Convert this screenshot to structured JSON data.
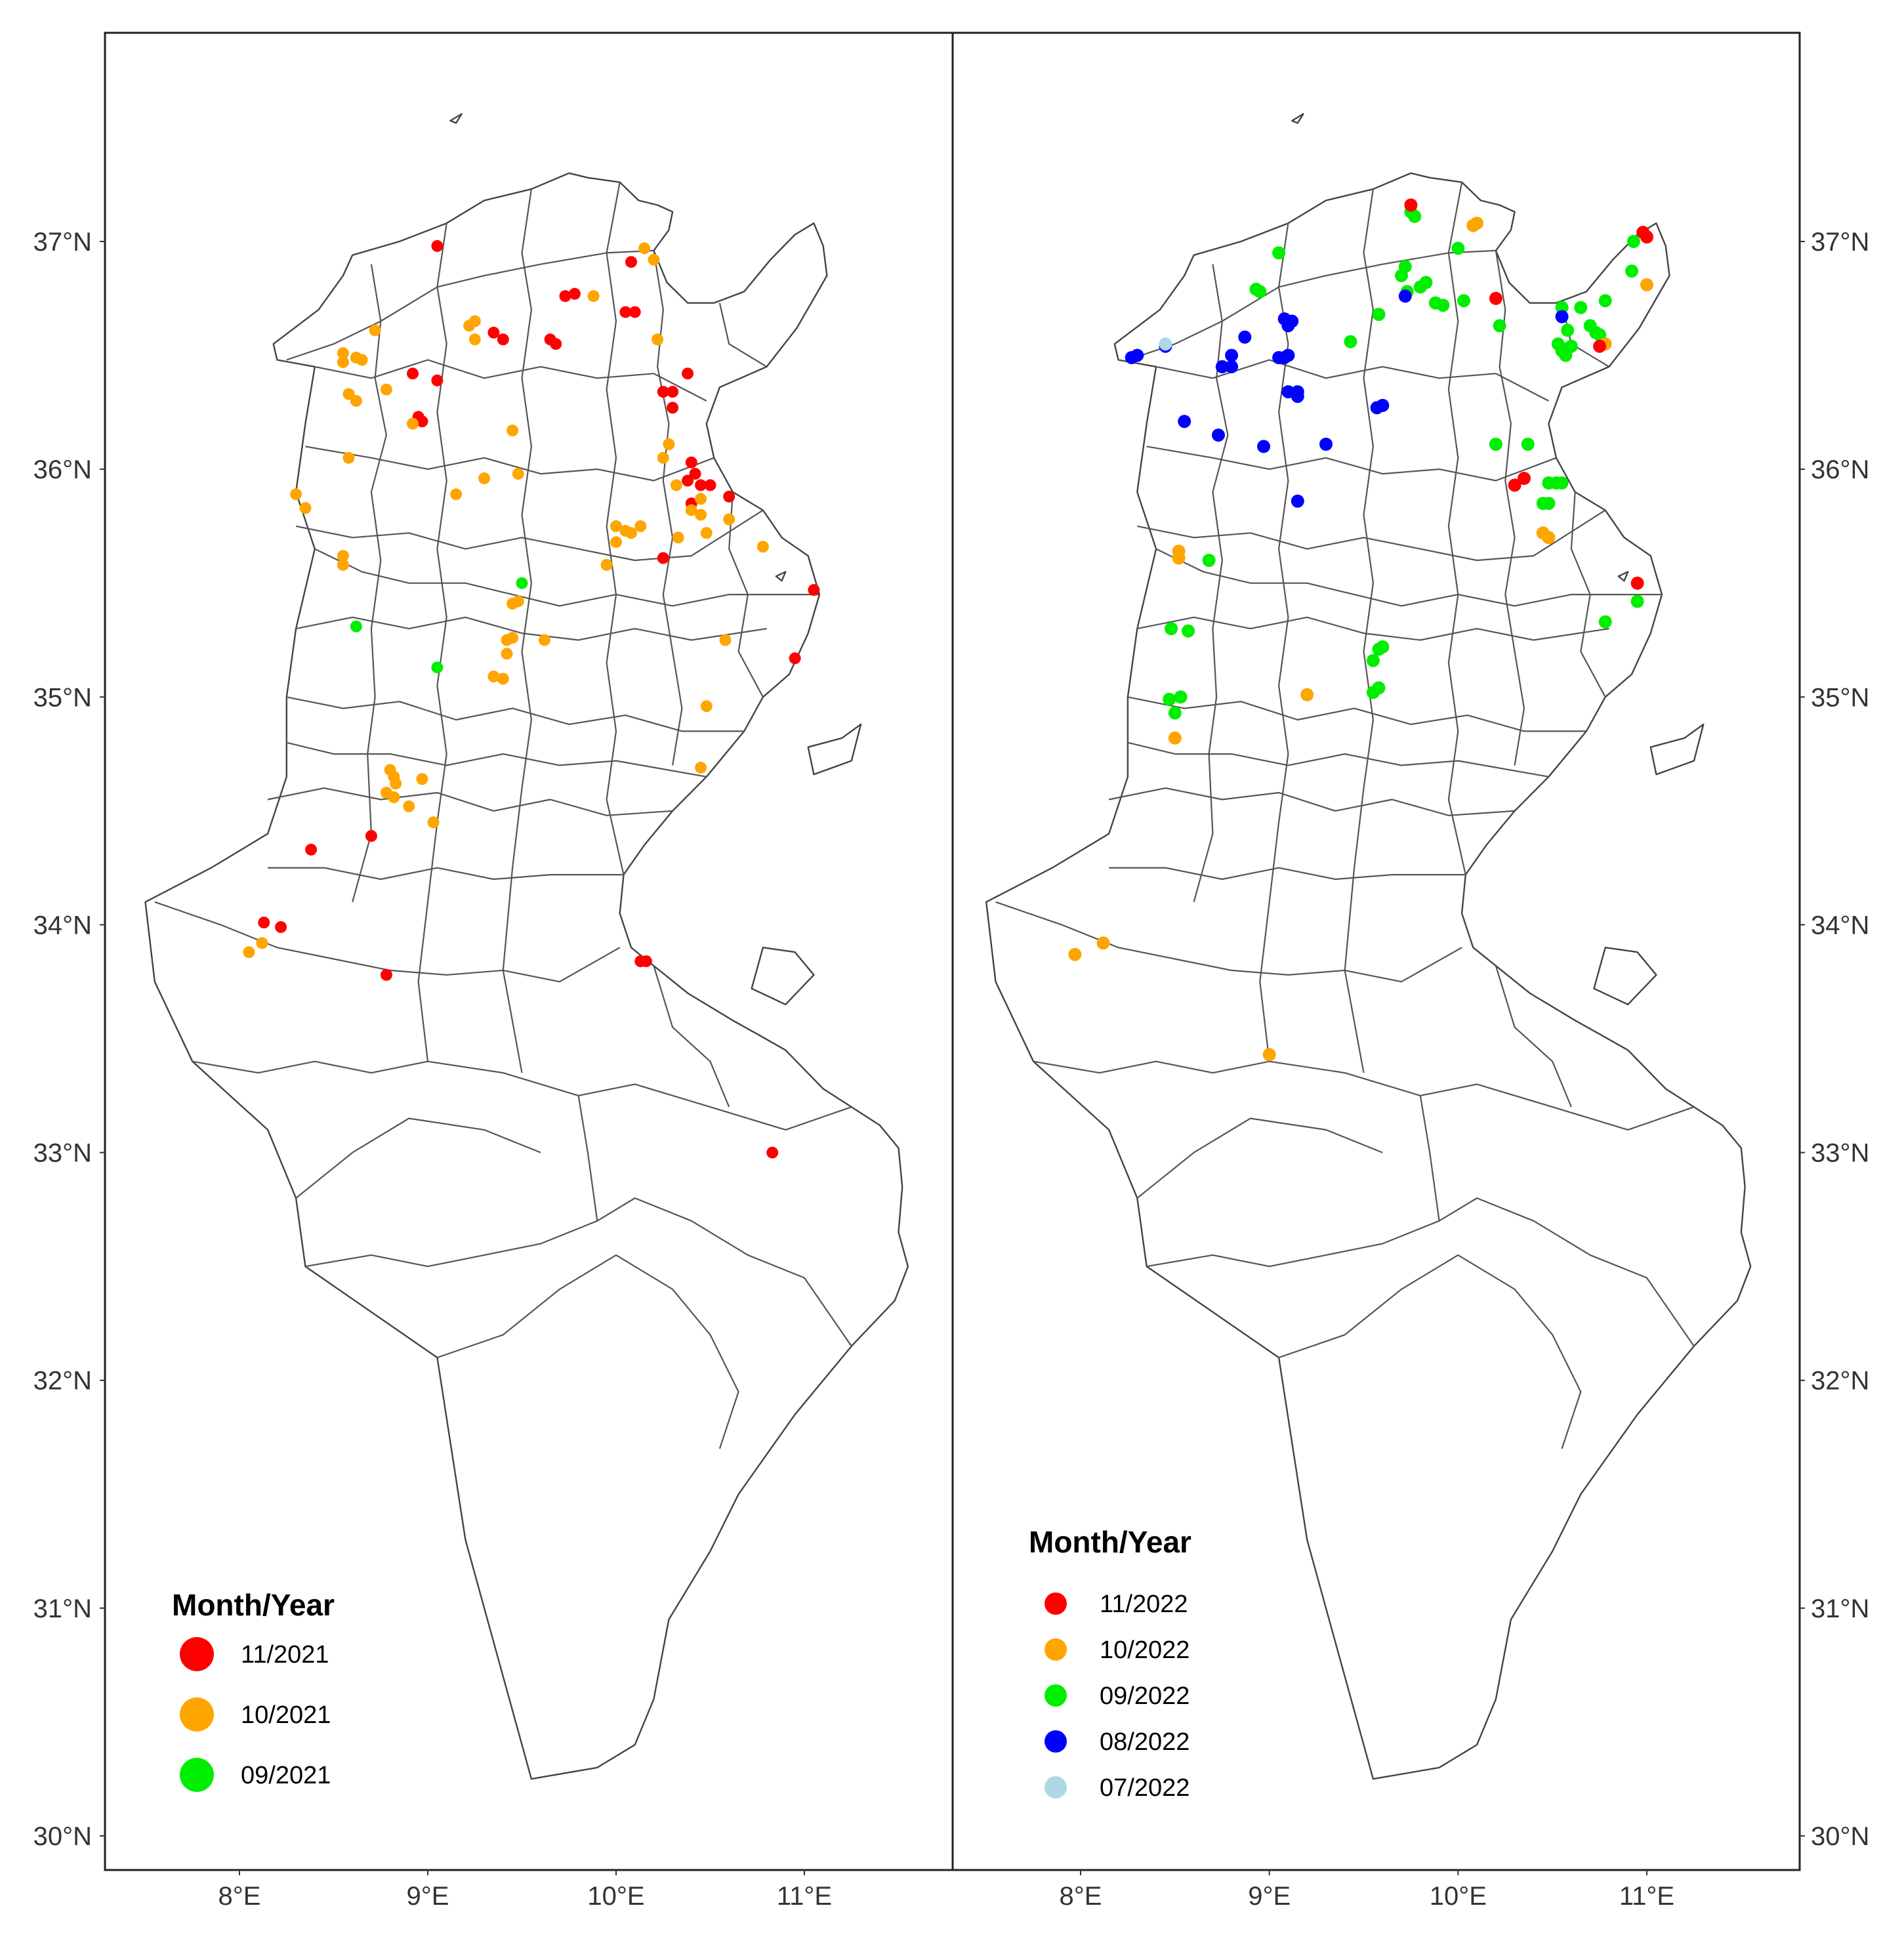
{
  "colors": {
    "11": "#ff0000",
    "10": "#ffa500",
    "09": "#00ee00",
    "08": "#0000ff",
    "07": "#add8e6"
  },
  "x_ticks": [
    "8°E",
    "9°E",
    "10°E",
    "11°E"
  ],
  "y_ticks": [
    "30°N",
    "31°N",
    "32°N",
    "33°N",
    "34°N",
    "35°N",
    "36°N",
    "37°N"
  ],
  "panels": [
    {
      "id": "2021",
      "legend": {
        "title": "Month/Year",
        "items": [
          {
            "label": "11/2021",
            "color_key": "11"
          },
          {
            "label": "10/2021",
            "color_key": "10"
          },
          {
            "label": "09/2021",
            "color_key": "09"
          }
        ]
      },
      "points": [
        {
          "lon": 9.05,
          "lat": 36.98,
          "m": "11"
        },
        {
          "lon": 10.08,
          "lat": 36.91,
          "m": "11"
        },
        {
          "lon": 9.73,
          "lat": 36.76,
          "m": "11"
        },
        {
          "lon": 9.78,
          "lat": 36.77,
          "m": "11"
        },
        {
          "lon": 10.05,
          "lat": 36.69,
          "m": "11"
        },
        {
          "lon": 10.1,
          "lat": 36.69,
          "m": "11"
        },
        {
          "lon": 9.35,
          "lat": 36.6,
          "m": "11"
        },
        {
          "lon": 9.4,
          "lat": 36.57,
          "m": "11"
        },
        {
          "lon": 9.65,
          "lat": 36.57,
          "m": "11"
        },
        {
          "lon": 9.68,
          "lat": 36.55,
          "m": "11"
        },
        {
          "lon": 8.92,
          "lat": 36.42,
          "m": "11"
        },
        {
          "lon": 9.05,
          "lat": 36.39,
          "m": "11"
        },
        {
          "lon": 10.38,
          "lat": 36.42,
          "m": "11"
        },
        {
          "lon": 10.25,
          "lat": 36.34,
          "m": "11"
        },
        {
          "lon": 10.3,
          "lat": 36.34,
          "m": "11"
        },
        {
          "lon": 10.3,
          "lat": 36.27,
          "m": "11"
        },
        {
          "lon": 8.95,
          "lat": 36.23,
          "m": "11"
        },
        {
          "lon": 8.97,
          "lat": 36.21,
          "m": "11"
        },
        {
          "lon": 10.4,
          "lat": 36.03,
          "m": "11"
        },
        {
          "lon": 10.42,
          "lat": 35.98,
          "m": "11"
        },
        {
          "lon": 10.38,
          "lat": 35.95,
          "m": "11"
        },
        {
          "lon": 10.45,
          "lat": 35.93,
          "m": "11"
        },
        {
          "lon": 10.5,
          "lat": 35.93,
          "m": "11"
        },
        {
          "lon": 10.6,
          "lat": 35.88,
          "m": "11"
        },
        {
          "lon": 10.4,
          "lat": 35.85,
          "m": "11"
        },
        {
          "lon": 10.25,
          "lat": 35.61,
          "m": "11"
        },
        {
          "lon": 11.05,
          "lat": 35.47,
          "m": "11"
        },
        {
          "lon": 10.95,
          "lat": 35.17,
          "m": "11"
        },
        {
          "lon": 8.38,
          "lat": 34.33,
          "m": "11"
        },
        {
          "lon": 8.7,
          "lat": 34.39,
          "m": "11"
        },
        {
          "lon": 8.13,
          "lat": 34.01,
          "m": "11"
        },
        {
          "lon": 8.22,
          "lat": 33.99,
          "m": "11"
        },
        {
          "lon": 8.78,
          "lat": 33.78,
          "m": "11"
        },
        {
          "lon": 10.13,
          "lat": 33.84,
          "m": "11"
        },
        {
          "lon": 10.16,
          "lat": 33.84,
          "m": "11"
        },
        {
          "lon": 10.83,
          "lat": 33.0,
          "m": "11"
        },
        {
          "lon": 10.15,
          "lat": 36.97,
          "m": "10"
        },
        {
          "lon": 10.2,
          "lat": 36.92,
          "m": "10"
        },
        {
          "lon": 9.88,
          "lat": 36.76,
          "m": "10"
        },
        {
          "lon": 8.72,
          "lat": 36.61,
          "m": "10"
        },
        {
          "lon": 9.22,
          "lat": 36.63,
          "m": "10"
        },
        {
          "lon": 9.25,
          "lat": 36.65,
          "m": "10"
        },
        {
          "lon": 10.22,
          "lat": 36.57,
          "m": "10"
        },
        {
          "lon": 9.25,
          "lat": 36.57,
          "m": "10"
        },
        {
          "lon": 8.55,
          "lat": 36.51,
          "m": "10"
        },
        {
          "lon": 8.55,
          "lat": 36.47,
          "m": "10"
        },
        {
          "lon": 8.62,
          "lat": 36.49,
          "m": "10"
        },
        {
          "lon": 8.65,
          "lat": 36.48,
          "m": "10"
        },
        {
          "lon": 8.58,
          "lat": 36.33,
          "m": "10"
        },
        {
          "lon": 8.62,
          "lat": 36.3,
          "m": "10"
        },
        {
          "lon": 8.78,
          "lat": 36.35,
          "m": "10"
        },
        {
          "lon": 8.92,
          "lat": 36.2,
          "m": "10"
        },
        {
          "lon": 9.45,
          "lat": 36.17,
          "m": "10"
        },
        {
          "lon": 10.28,
          "lat": 36.11,
          "m": "10"
        },
        {
          "lon": 10.25,
          "lat": 36.05,
          "m": "10"
        },
        {
          "lon": 8.58,
          "lat": 36.05,
          "m": "10"
        },
        {
          "lon": 9.3,
          "lat": 35.96,
          "m": "10"
        },
        {
          "lon": 9.48,
          "lat": 35.98,
          "m": "10"
        },
        {
          "lon": 8.3,
          "lat": 35.89,
          "m": "10"
        },
        {
          "lon": 8.35,
          "lat": 35.83,
          "m": "10"
        },
        {
          "lon": 9.15,
          "lat": 35.89,
          "m": "10"
        },
        {
          "lon": 10.32,
          "lat": 35.93,
          "m": "10"
        },
        {
          "lon": 10.45,
          "lat": 35.87,
          "m": "10"
        },
        {
          "lon": 10.4,
          "lat": 35.82,
          "m": "10"
        },
        {
          "lon": 10.45,
          "lat": 35.8,
          "m": "10"
        },
        {
          "lon": 10.6,
          "lat": 35.78,
          "m": "10"
        },
        {
          "lon": 10.0,
          "lat": 35.75,
          "m": "10"
        },
        {
          "lon": 10.05,
          "lat": 35.73,
          "m": "10"
        },
        {
          "lon": 10.08,
          "lat": 35.72,
          "m": "10"
        },
        {
          "lon": 10.13,
          "lat": 35.75,
          "m": "10"
        },
        {
          "lon": 10.0,
          "lat": 35.68,
          "m": "10"
        },
        {
          "lon": 10.33,
          "lat": 35.7,
          "m": "10"
        },
        {
          "lon": 10.48,
          "lat": 35.72,
          "m": "10"
        },
        {
          "lon": 10.78,
          "lat": 35.66,
          "m": "10"
        },
        {
          "lon": 8.55,
          "lat": 35.62,
          "m": "10"
        },
        {
          "lon": 8.55,
          "lat": 35.58,
          "m": "10"
        },
        {
          "lon": 9.95,
          "lat": 35.58,
          "m": "10"
        },
        {
          "lon": 9.45,
          "lat": 35.41,
          "m": "10"
        },
        {
          "lon": 9.48,
          "lat": 35.42,
          "m": "10"
        },
        {
          "lon": 9.42,
          "lat": 35.25,
          "m": "10"
        },
        {
          "lon": 9.45,
          "lat": 35.26,
          "m": "10"
        },
        {
          "lon": 9.62,
          "lat": 35.25,
          "m": "10"
        },
        {
          "lon": 10.58,
          "lat": 35.25,
          "m": "10"
        },
        {
          "lon": 9.42,
          "lat": 35.19,
          "m": "10"
        },
        {
          "lon": 9.35,
          "lat": 35.09,
          "m": "10"
        },
        {
          "lon": 9.4,
          "lat": 35.08,
          "m": "10"
        },
        {
          "lon": 10.48,
          "lat": 34.96,
          "m": "10"
        },
        {
          "lon": 10.45,
          "lat": 34.69,
          "m": "10"
        },
        {
          "lon": 8.8,
          "lat": 34.68,
          "m": "10"
        },
        {
          "lon": 8.82,
          "lat": 34.65,
          "m": "10"
        },
        {
          "lon": 8.83,
          "lat": 34.62,
          "m": "10"
        },
        {
          "lon": 8.97,
          "lat": 34.64,
          "m": "10"
        },
        {
          "lon": 8.78,
          "lat": 34.58,
          "m": "10"
        },
        {
          "lon": 8.82,
          "lat": 34.56,
          "m": "10"
        },
        {
          "lon": 8.9,
          "lat": 34.52,
          "m": "10"
        },
        {
          "lon": 9.03,
          "lat": 34.45,
          "m": "10"
        },
        {
          "lon": 8.12,
          "lat": 33.92,
          "m": "10"
        },
        {
          "lon": 8.05,
          "lat": 33.88,
          "m": "10"
        },
        {
          "lon": 9.5,
          "lat": 35.5,
          "m": "09"
        },
        {
          "lon": 8.62,
          "lat": 35.31,
          "m": "09"
        },
        {
          "lon": 9.05,
          "lat": 35.13,
          "m": "09"
        }
      ]
    },
    {
      "id": "2022",
      "legend": {
        "title": "Month/Year",
        "items": [
          {
            "label": "11/2022",
            "color_key": "11"
          },
          {
            "label": "10/2022",
            "color_key": "10"
          },
          {
            "label": "09/2022",
            "color_key": "09"
          },
          {
            "label": "08/2022",
            "color_key": "08"
          },
          {
            "label": "07/2022",
            "color_key": "07"
          }
        ]
      },
      "points": [
        {
          "lon": 9.75,
          "lat": 37.13,
          "m": "09"
        },
        {
          "lon": 9.77,
          "lat": 37.11,
          "m": "09"
        },
        {
          "lon": 9.05,
          "lat": 36.95,
          "m": "09"
        },
        {
          "lon": 10.0,
          "lat": 36.97,
          "m": "09"
        },
        {
          "lon": 10.93,
          "lat": 37.0,
          "m": "09"
        },
        {
          "lon": 9.72,
          "lat": 36.89,
          "m": "09"
        },
        {
          "lon": 9.7,
          "lat": 36.85,
          "m": "09"
        },
        {
          "lon": 10.92,
          "lat": 36.87,
          "m": "09"
        },
        {
          "lon": 8.93,
          "lat": 36.79,
          "m": "09"
        },
        {
          "lon": 8.95,
          "lat": 36.78,
          "m": "09"
        },
        {
          "lon": 9.73,
          "lat": 36.78,
          "m": "09"
        },
        {
          "lon": 9.8,
          "lat": 36.8,
          "m": "09"
        },
        {
          "lon": 9.83,
          "lat": 36.82,
          "m": "09"
        },
        {
          "lon": 10.03,
          "lat": 36.74,
          "m": "09"
        },
        {
          "lon": 9.88,
          "lat": 36.73,
          "m": "09"
        },
        {
          "lon": 9.92,
          "lat": 36.72,
          "m": "09"
        },
        {
          "lon": 10.55,
          "lat": 36.71,
          "m": "09"
        },
        {
          "lon": 10.65,
          "lat": 36.71,
          "m": "09"
        },
        {
          "lon": 10.78,
          "lat": 36.74,
          "m": "09"
        },
        {
          "lon": 9.58,
          "lat": 36.68,
          "m": "09"
        },
        {
          "lon": 10.22,
          "lat": 36.63,
          "m": "09"
        },
        {
          "lon": 10.58,
          "lat": 36.61,
          "m": "09"
        },
        {
          "lon": 10.7,
          "lat": 36.63,
          "m": "09"
        },
        {
          "lon": 10.73,
          "lat": 36.6,
          "m": "09"
        },
        {
          "lon": 10.75,
          "lat": 36.59,
          "m": "09"
        },
        {
          "lon": 9.43,
          "lat": 36.56,
          "m": "09"
        },
        {
          "lon": 10.53,
          "lat": 36.55,
          "m": "09"
        },
        {
          "lon": 10.55,
          "lat": 36.52,
          "m": "09"
        },
        {
          "lon": 10.58,
          "lat": 36.53,
          "m": "09"
        },
        {
          "lon": 10.6,
          "lat": 36.54,
          "m": "09"
        },
        {
          "lon": 10.57,
          "lat": 36.5,
          "m": "09"
        },
        {
          "lon": 10.2,
          "lat": 36.11,
          "m": "09"
        },
        {
          "lon": 10.37,
          "lat": 36.11,
          "m": "09"
        },
        {
          "lon": 10.48,
          "lat": 35.94,
          "m": "09"
        },
        {
          "lon": 10.52,
          "lat": 35.94,
          "m": "09"
        },
        {
          "lon": 10.55,
          "lat": 35.94,
          "m": "09"
        },
        {
          "lon": 10.45,
          "lat": 35.85,
          "m": "09"
        },
        {
          "lon": 10.48,
          "lat": 35.85,
          "m": "09"
        },
        {
          "lon": 8.68,
          "lat": 35.6,
          "m": "09"
        },
        {
          "lon": 10.95,
          "lat": 35.42,
          "m": "09"
        },
        {
          "lon": 10.78,
          "lat": 35.33,
          "m": "09"
        },
        {
          "lon": 8.48,
          "lat": 35.3,
          "m": "09"
        },
        {
          "lon": 8.57,
          "lat": 35.29,
          "m": "09"
        },
        {
          "lon": 9.58,
          "lat": 35.21,
          "m": "09"
        },
        {
          "lon": 9.6,
          "lat": 35.22,
          "m": "09"
        },
        {
          "lon": 9.55,
          "lat": 35.16,
          "m": "09"
        },
        {
          "lon": 9.58,
          "lat": 35.04,
          "m": "09"
        },
        {
          "lon": 9.55,
          "lat": 35.02,
          "m": "09"
        },
        {
          "lon": 8.53,
          "lat": 35.0,
          "m": "09"
        },
        {
          "lon": 8.47,
          "lat": 34.99,
          "m": "09"
        },
        {
          "lon": 8.5,
          "lat": 34.93,
          "m": "09"
        },
        {
          "lon": 9.72,
          "lat": 36.76,
          "m": "08"
        },
        {
          "lon": 9.08,
          "lat": 36.66,
          "m": "08"
        },
        {
          "lon": 9.12,
          "lat": 36.65,
          "m": "08"
        },
        {
          "lon": 9.1,
          "lat": 36.63,
          "m": "08"
        },
        {
          "lon": 10.55,
          "lat": 36.67,
          "m": "08"
        },
        {
          "lon": 8.87,
          "lat": 36.58,
          "m": "08"
        },
        {
          "lon": 8.45,
          "lat": 36.54,
          "m": "08"
        },
        {
          "lon": 8.3,
          "lat": 36.5,
          "m": "08"
        },
        {
          "lon": 8.27,
          "lat": 36.49,
          "m": "08"
        },
        {
          "lon": 8.8,
          "lat": 36.5,
          "m": "08"
        },
        {
          "lon": 9.05,
          "lat": 36.49,
          "m": "08"
        },
        {
          "lon": 9.08,
          "lat": 36.49,
          "m": "08"
        },
        {
          "lon": 9.1,
          "lat": 36.5,
          "m": "08"
        },
        {
          "lon": 8.75,
          "lat": 36.45,
          "m": "08"
        },
        {
          "lon": 8.8,
          "lat": 36.45,
          "m": "08"
        },
        {
          "lon": 9.1,
          "lat": 36.34,
          "m": "08"
        },
        {
          "lon": 9.15,
          "lat": 36.34,
          "m": "08"
        },
        {
          "lon": 9.15,
          "lat": 36.32,
          "m": "08"
        },
        {
          "lon": 9.57,
          "lat": 36.27,
          "m": "08"
        },
        {
          "lon": 9.6,
          "lat": 36.28,
          "m": "08"
        },
        {
          "lon": 8.55,
          "lat": 36.21,
          "m": "08"
        },
        {
          "lon": 8.73,
          "lat": 36.15,
          "m": "08"
        },
        {
          "lon": 8.97,
          "lat": 36.1,
          "m": "08"
        },
        {
          "lon": 9.3,
          "lat": 36.11,
          "m": "08"
        },
        {
          "lon": 9.15,
          "lat": 35.86,
          "m": "08"
        },
        {
          "lon": 8.45,
          "lat": 36.55,
          "m": "07"
        },
        {
          "lon": 10.08,
          "lat": 37.07,
          "m": "10"
        },
        {
          "lon": 10.1,
          "lat": 37.08,
          "m": "10"
        },
        {
          "lon": 11.0,
          "lat": 36.81,
          "m": "10"
        },
        {
          "lon": 10.78,
          "lat": 36.55,
          "m": "10"
        },
        {
          "lon": 10.45,
          "lat": 35.72,
          "m": "10"
        },
        {
          "lon": 10.48,
          "lat": 35.7,
          "m": "10"
        },
        {
          "lon": 8.52,
          "lat": 35.64,
          "m": "10"
        },
        {
          "lon": 8.52,
          "lat": 35.61,
          "m": "10"
        },
        {
          "lon": 9.2,
          "lat": 35.01,
          "m": "10"
        },
        {
          "lon": 8.5,
          "lat": 34.82,
          "m": "10"
        },
        {
          "lon": 8.12,
          "lat": 33.92,
          "m": "10"
        },
        {
          "lon": 7.97,
          "lat": 33.87,
          "m": "10"
        },
        {
          "lon": 9.0,
          "lat": 33.43,
          "m": "10"
        },
        {
          "lon": 9.75,
          "lat": 37.16,
          "m": "11"
        },
        {
          "lon": 10.98,
          "lat": 37.04,
          "m": "11"
        },
        {
          "lon": 11.0,
          "lat": 37.02,
          "m": "11"
        },
        {
          "lon": 10.2,
          "lat": 36.75,
          "m": "11"
        },
        {
          "lon": 10.75,
          "lat": 36.54,
          "m": "11"
        },
        {
          "lon": 10.35,
          "lat": 35.96,
          "m": "11"
        },
        {
          "lon": 10.3,
          "lat": 35.93,
          "m": "11"
        },
        {
          "lon": 10.95,
          "lat": 35.5,
          "m": "11"
        }
      ]
    }
  ]
}
